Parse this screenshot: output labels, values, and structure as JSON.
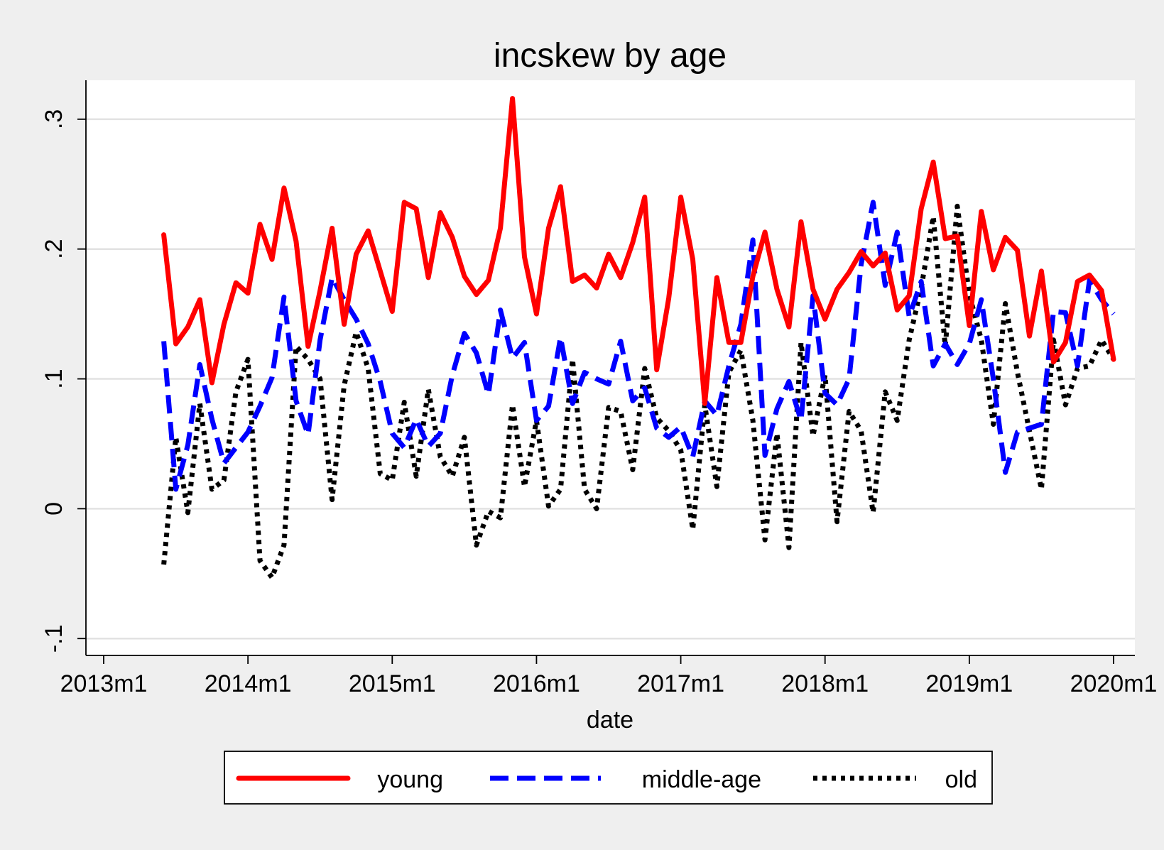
{
  "chart_data": {
    "type": "line",
    "title": "incskew by age",
    "xlabel": "date",
    "ylabel": "",
    "x_tick_labels": [
      "2013m1",
      "2014m1",
      "2015m1",
      "2016m1",
      "2017m1",
      "2018m1",
      "2019m1",
      "2020m1"
    ],
    "y_tick_labels": [
      "-.1",
      "0",
      ".1",
      ".2",
      ".3"
    ],
    "y_ticks": [
      -0.1,
      0,
      0.1,
      0.2,
      0.3
    ],
    "xlim": [
      "2013-01",
      "2020-01"
    ],
    "ylim": [
      -0.113,
      0.33
    ],
    "grid": true,
    "legend_position": "bottom",
    "dates": [
      "2013-06",
      "2013-07",
      "2013-08",
      "2013-09",
      "2013-10",
      "2013-11",
      "2013-12",
      "2014-01",
      "2014-02",
      "2014-03",
      "2014-04",
      "2014-05",
      "2014-06",
      "2014-07",
      "2014-08",
      "2014-09",
      "2014-10",
      "2014-11",
      "2014-12",
      "2015-01",
      "2015-02",
      "2015-03",
      "2015-04",
      "2015-05",
      "2015-06",
      "2015-07",
      "2015-08",
      "2015-09",
      "2015-10",
      "2015-11",
      "2015-12",
      "2016-01",
      "2016-02",
      "2016-03",
      "2016-04",
      "2016-05",
      "2016-06",
      "2016-07",
      "2016-08",
      "2016-09",
      "2016-10",
      "2016-11",
      "2016-12",
      "2017-01",
      "2017-02",
      "2017-03",
      "2017-04",
      "2017-05",
      "2017-06",
      "2017-07",
      "2017-08",
      "2017-09",
      "2017-10",
      "2017-11",
      "2017-12",
      "2018-01",
      "2018-02",
      "2018-03",
      "2018-04",
      "2018-05",
      "2018-06",
      "2018-07",
      "2018-08",
      "2018-09",
      "2018-10",
      "2018-11",
      "2018-12",
      "2019-01",
      "2019-02",
      "2019-03",
      "2019-04",
      "2019-05",
      "2019-06",
      "2019-07",
      "2019-08",
      "2019-09",
      "2019-10",
      "2019-11",
      "2019-12",
      "2020-01"
    ],
    "series": [
      {
        "name": "young",
        "color": "#ff0000",
        "style": "solid",
        "values": [
          0.211,
          0.127,
          0.14,
          0.161,
          0.097,
          0.142,
          0.174,
          0.166,
          0.219,
          0.192,
          0.247,
          0.206,
          0.125,
          0.168,
          0.216,
          0.142,
          0.196,
          0.214,
          0.183,
          0.152,
          0.236,
          0.231,
          0.178,
          0.228,
          0.209,
          0.179,
          0.165,
          0.176,
          0.216,
          0.316,
          0.194,
          0.15,
          0.216,
          0.248,
          0.175,
          0.18,
          0.17,
          0.196,
          0.178,
          0.205,
          0.24,
          0.107,
          0.162,
          0.24,
          0.192,
          0.081,
          0.178,
          0.128,
          0.128,
          0.179,
          0.213,
          0.169,
          0.14,
          0.221,
          0.169,
          0.146,
          0.169,
          0.182,
          0.198,
          0.187,
          0.197,
          0.153,
          0.164,
          0.231,
          0.267,
          0.208,
          0.21,
          0.141,
          0.229,
          0.184,
          0.209,
          0.199,
          0.133,
          0.183,
          0.113,
          0.128,
          0.175,
          0.18,
          0.168,
          0.115
        ]
      },
      {
        "name": "middle-age",
        "color": "#0000ff",
        "style": "dashed",
        "values": [
          0.129,
          0.015,
          0.049,
          0.111,
          0.069,
          0.035,
          0.047,
          0.059,
          0.079,
          0.101,
          0.163,
          0.083,
          0.057,
          0.13,
          0.178,
          0.161,
          0.146,
          0.127,
          0.098,
          0.058,
          0.047,
          0.069,
          0.048,
          0.058,
          0.103,
          0.135,
          0.12,
          0.088,
          0.153,
          0.116,
          0.128,
          0.068,
          0.079,
          0.132,
          0.081,
          0.105,
          0.1,
          0.096,
          0.129,
          0.083,
          0.093,
          0.062,
          0.055,
          0.063,
          0.04,
          0.083,
          0.072,
          0.11,
          0.142,
          0.207,
          0.041,
          0.077,
          0.098,
          0.068,
          0.164,
          0.089,
          0.08,
          0.1,
          0.188,
          0.236,
          0.172,
          0.213,
          0.148,
          0.175,
          0.11,
          0.127,
          0.111,
          0.127,
          0.161,
          0.1,
          0.028,
          0.059,
          0.062,
          0.065,
          0.152,
          0.151,
          0.11,
          0.176,
          0.161,
          0.15
        ]
      },
      {
        "name": "old",
        "color": "#000000",
        "style": "dotted",
        "values": [
          -0.043,
          0.055,
          -0.003,
          0.081,
          0.015,
          0.022,
          0.09,
          0.115,
          -0.04,
          -0.053,
          -0.028,
          0.125,
          0.115,
          0.1,
          0.007,
          0.095,
          0.136,
          0.108,
          0.027,
          0.022,
          0.082,
          0.025,
          0.092,
          0.04,
          0.025,
          0.055,
          -0.028,
          -0.002,
          -0.007,
          0.08,
          0.017,
          0.068,
          0.002,
          0.015,
          0.115,
          0.015,
          0.0,
          0.078,
          0.075,
          0.03,
          0.108,
          0.07,
          0.06,
          0.045,
          -0.016,
          0.08,
          0.017,
          0.105,
          0.122,
          0.068,
          -0.024,
          0.058,
          -0.03,
          0.128,
          0.056,
          0.103,
          -0.01,
          0.075,
          0.06,
          -0.003,
          0.09,
          0.068,
          0.13,
          0.17,
          0.225,
          0.125,
          0.233,
          0.165,
          0.13,
          0.065,
          0.158,
          0.105,
          0.06,
          0.015,
          0.13,
          0.08,
          0.108,
          0.11,
          0.13,
          0.115
        ]
      }
    ]
  }
}
